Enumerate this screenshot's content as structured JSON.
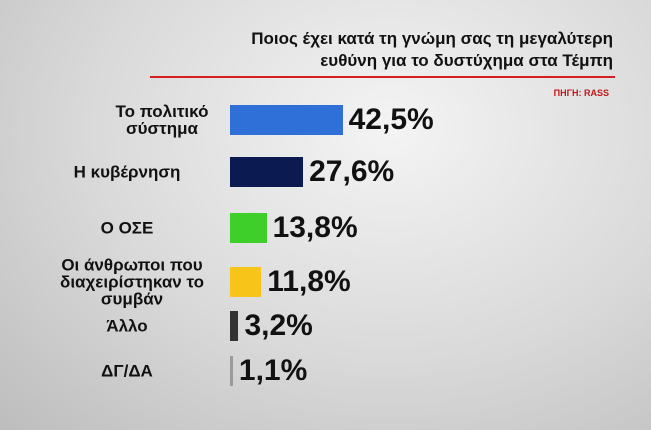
{
  "chart_data": {
    "type": "bar",
    "orientation": "horizontal",
    "title": "Ποιος έχει κατά τη γνώμη σας τη μεγαλύτερη ευθύνη για το δυστύχημα στα Τέμπη",
    "source": "ΠΗΓΗ: RASS",
    "categories": [
      "Το πολιτικό σύστημα",
      "Η κυβέρνηση",
      "Ο ΟΣΕ",
      "Οι άνθρωποι που διαχειρίστηκαν το συμβάν",
      "Άλλο",
      "ΔΓ/ΔΑ"
    ],
    "values": [
      42.5,
      27.6,
      13.8,
      11.8,
      3.2,
      1.1
    ],
    "value_labels": [
      "42,5%",
      "27,6%",
      "13,8%",
      "11,8%",
      "3,2%",
      "1,1%"
    ],
    "colors": [
      "#2f6fd8",
      "#0c1a52",
      "#3fcf2b",
      "#f7c41a",
      "#333333",
      "#9a9a9a"
    ]
  }
}
